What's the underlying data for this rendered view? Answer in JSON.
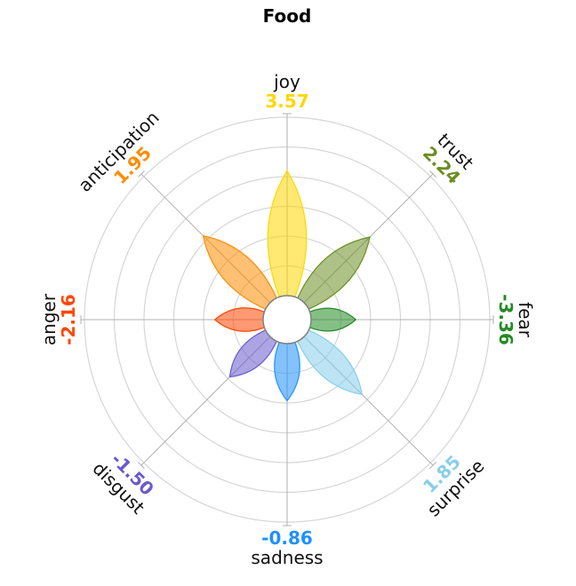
{
  "chart_data": {
    "type": "plutchik-flower",
    "title": "Food",
    "grid": true,
    "ring_count": 6,
    "emotions": [
      {
        "name": "joy",
        "value": "3.57",
        "color": "#ffd700"
      },
      {
        "name": "trust",
        "value": "2.24",
        "color": "#6b8e23"
      },
      {
        "name": "fear",
        "value": "-3.36",
        "color": "#228b22"
      },
      {
        "name": "surprise",
        "value": "1.85",
        "color": "#87ceeb"
      },
      {
        "name": "sadness",
        "value": "-0.86",
        "color": "#1e90ff"
      },
      {
        "name": "disgust",
        "value": "-1.50",
        "color": "#6a5acd"
      },
      {
        "name": "anger",
        "value": "-2.16",
        "color": "#ff4500"
      },
      {
        "name": "anticipation",
        "value": "1.95",
        "color": "#ff8c00"
      }
    ],
    "petal_lengths": [
      0.7,
      0.52,
      0.25,
      0.46,
      0.32,
      0.32,
      0.27,
      0.53
    ]
  }
}
